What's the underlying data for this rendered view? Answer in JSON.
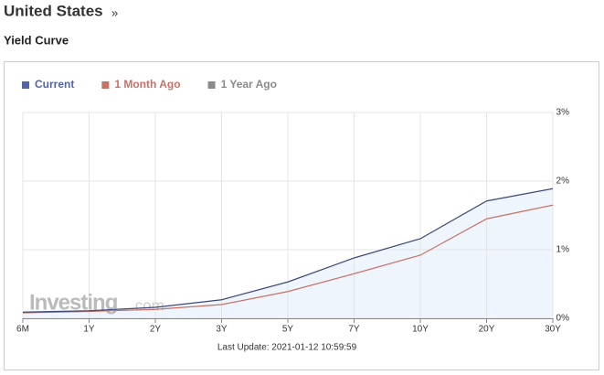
{
  "header": {
    "title": "United States",
    "link": "»",
    "subtitle": "Yield Curve"
  },
  "chart_data": {
    "type": "line",
    "categories": [
      "6M",
      "1Y",
      "2Y",
      "3Y",
      "5Y",
      "7Y",
      "10Y",
      "20Y",
      "30Y"
    ],
    "series": [
      {
        "name": "Current",
        "color": "#3c4a7a",
        "legend_color": "#5465a6",
        "values": [
          0.09,
          0.11,
          0.16,
          0.27,
          0.53,
          0.88,
          1.16,
          1.71,
          1.89
        ]
      },
      {
        "name": "1 Month Ago",
        "color": "#c87266",
        "legend_color": "#c87266",
        "values": [
          0.08,
          0.1,
          0.13,
          0.2,
          0.39,
          0.65,
          0.92,
          1.45,
          1.65
        ]
      },
      {
        "name": "1 Year Ago",
        "color": "#8a8a8a",
        "legend_color": "#8a8a8a",
        "values": [
          null,
          null,
          null,
          null,
          null,
          null,
          null,
          null,
          null
        ]
      }
    ],
    "area_fill": "#eef5fc",
    "ylim": [
      0,
      3
    ],
    "yticks": [
      {
        "value": 0,
        "label": "0%"
      },
      {
        "value": 1,
        "label": "1%"
      },
      {
        "value": 2,
        "label": "2%"
      },
      {
        "value": 3,
        "label": "3%"
      }
    ],
    "grid": true,
    "watermark": {
      "brand": "Investing",
      "suffix": ".com"
    },
    "footnote": "Last Update: 2021-01-12 10:59:59"
  }
}
